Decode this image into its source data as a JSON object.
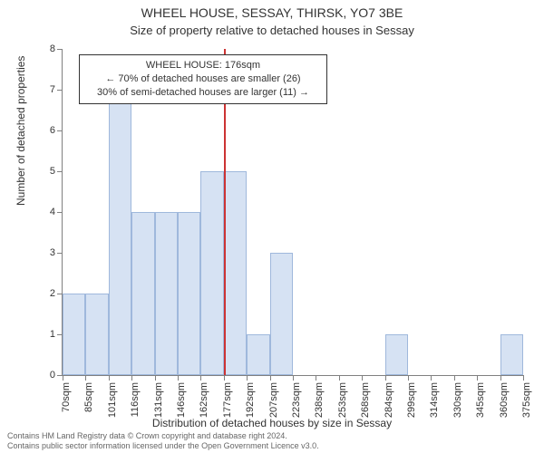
{
  "chart": {
    "type": "histogram",
    "title": "WHEEL HOUSE, SESSAY, THIRSK, YO7 3BE",
    "subtitle": "Size of property relative to detached houses in Sessay",
    "y_axis_title": "Number of detached properties",
    "x_axis_title": "Distribution of detached houses by size in Sessay",
    "background_color": "#ffffff",
    "axis_color": "#808080",
    "label_fontsize": 11,
    "title_fontsize": 14,
    "ylim": [
      0,
      8
    ],
    "ytick_step": 1,
    "x_labels": [
      "70sqm",
      "85sqm",
      "101sqm",
      "116sqm",
      "131sqm",
      "146sqm",
      "162sqm",
      "177sqm",
      "192sqm",
      "207sqm",
      "223sqm",
      "238sqm",
      "253sqm",
      "268sqm",
      "284sqm",
      "299sqm",
      "314sqm",
      "330sqm",
      "345sqm",
      "360sqm",
      "375sqm"
    ],
    "bars": [
      2,
      2,
      7,
      4,
      4,
      4,
      5,
      5,
      1,
      3,
      0,
      0,
      0,
      0,
      1,
      0,
      0,
      0,
      0,
      1
    ],
    "bar_fill": "#d6e2f3",
    "bar_border": "#9fb8dc",
    "marker_color": "#cc3333",
    "marker_bin_index_after": 7,
    "marker_fraction_into_bin": 0.0,
    "annotation": {
      "line1": "WHEEL HOUSE: 176sqm",
      "line2": "← 70% of detached houses are smaller (26)",
      "line3": "30% of semi-detached houses are larger (11) →"
    },
    "footer": {
      "line1": "Contains HM Land Registry data © Crown copyright and database right 2024.",
      "line2": "Contains public sector information licensed under the Open Government Licence v3.0."
    }
  }
}
